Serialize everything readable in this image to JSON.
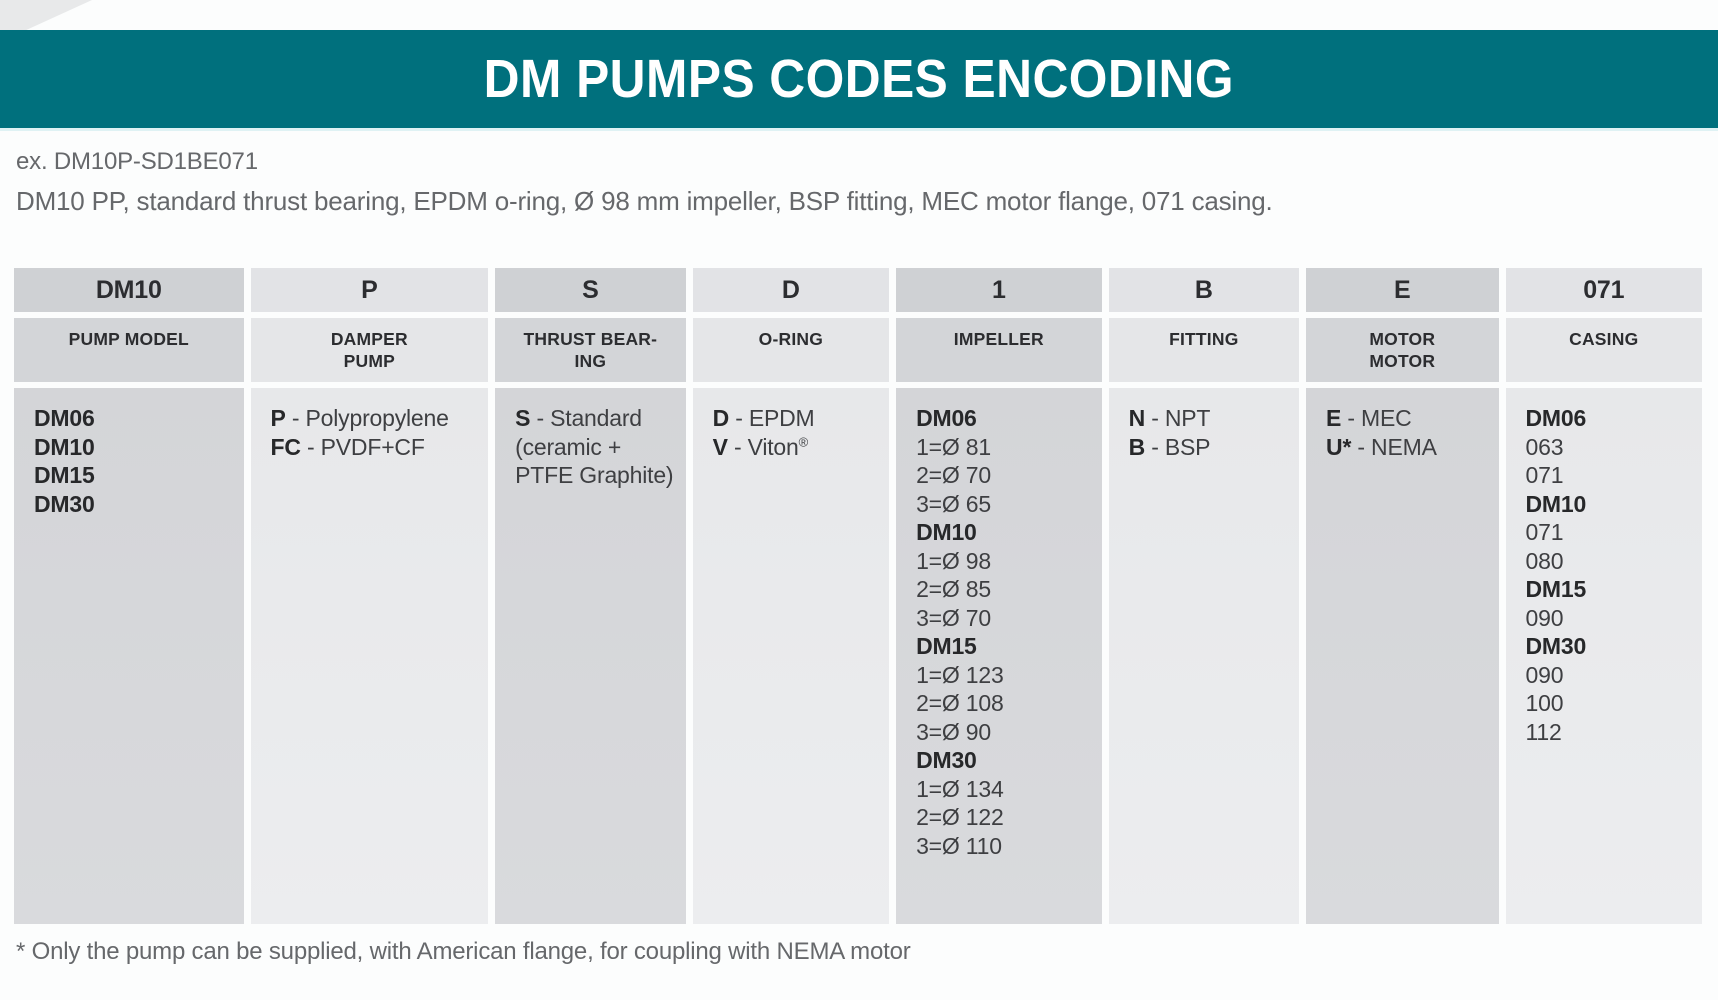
{
  "banner": {
    "title": "DM PUMPS CODES ENCODING"
  },
  "example": {
    "line1": "ex. DM10P-SD1BE071",
    "line2": "DM10 PP, standard thrust bearing, EPDM o-ring, Ø 98 mm impeller, BSP fitting, MEC motor flange, 071 casing."
  },
  "table": {
    "columns": [
      {
        "code": "DM10",
        "label": [
          "PUMP MODEL"
        ],
        "shade": "dark",
        "lines": [
          {
            "b": "DM06",
            "r": ""
          },
          {
            "b": "DM10",
            "r": ""
          },
          {
            "b": "DM15",
            "r": ""
          },
          {
            "b": "DM30",
            "r": ""
          }
        ]
      },
      {
        "code": "P",
        "label": [
          "DAMPER",
          "PUMP"
        ],
        "shade": "light",
        "lines": [
          {
            "b": "P",
            "r": " - Polypropylene"
          },
          {
            "b": "FC",
            "r": " - PVDF+CF"
          }
        ]
      },
      {
        "code": "S",
        "label": [
          "THRUST BEAR-",
          "ING"
        ],
        "shade": "dark",
        "lines": [
          {
            "b": "S",
            "r": " - Standard"
          },
          {
            "b": "",
            "r": "(ceramic +"
          },
          {
            "b": "",
            "r": "PTFE Graphite)"
          }
        ]
      },
      {
        "code": "D",
        "label": [
          "O-RING"
        ],
        "shade": "light",
        "lines": [
          {
            "b": "D",
            "r": " - EPDM"
          },
          {
            "b": "V",
            "r": " - Viton",
            "sup": "®"
          }
        ]
      },
      {
        "code": "1",
        "label": [
          "IMPELLER"
        ],
        "shade": "dark",
        "lines": [
          {
            "b": "DM06",
            "r": ""
          },
          {
            "b": "",
            "r": "1=Ø 81"
          },
          {
            "b": "",
            "r": "2=Ø 70"
          },
          {
            "b": "",
            "r": "3=Ø 65"
          },
          {
            "b": "DM10",
            "r": ""
          },
          {
            "b": "",
            "r": "1=Ø 98"
          },
          {
            "b": "",
            "r": "2=Ø 85"
          },
          {
            "b": "",
            "r": "3=Ø 70"
          },
          {
            "b": "DM15",
            "r": ""
          },
          {
            "b": "",
            "r": "1=Ø 123"
          },
          {
            "b": "",
            "r": "2=Ø 108"
          },
          {
            "b": "",
            "r": "3=Ø 90"
          },
          {
            "b": "DM30",
            "r": ""
          },
          {
            "b": "",
            "r": "1=Ø 134"
          },
          {
            "b": "",
            "r": "2=Ø 122"
          },
          {
            "b": "",
            "r": "3=Ø 110"
          }
        ]
      },
      {
        "code": "B",
        "label": [
          "FITTING"
        ],
        "shade": "light",
        "lines": [
          {
            "b": "N",
            "r": " - NPT"
          },
          {
            "b": "B",
            "r": " - BSP"
          }
        ]
      },
      {
        "code": "E",
        "label": [
          "MOTOR",
          "MOTOR"
        ],
        "shade": "dark",
        "lines": [
          {
            "b": "E",
            "r": " - MEC"
          },
          {
            "b": "U*",
            "r": " - NEMA"
          }
        ]
      },
      {
        "code": "071",
        "label": [
          "CASING"
        ],
        "shade": "light",
        "lines": [
          {
            "b": "DM06",
            "r": ""
          },
          {
            "b": "",
            "r": "063"
          },
          {
            "b": "",
            "r": "071"
          },
          {
            "b": "DM10",
            "r": ""
          },
          {
            "b": "",
            "r": "071"
          },
          {
            "b": "",
            "r": "080"
          },
          {
            "b": "DM15",
            "r": ""
          },
          {
            "b": "",
            "r": "090"
          },
          {
            "b": "DM30",
            "r": ""
          },
          {
            "b": "",
            "r": "090"
          },
          {
            "b": "",
            "r": "100"
          },
          {
            "b": "",
            "r": "112"
          }
        ]
      }
    ]
  },
  "footnote": "* Only the pump can be supplied, with American flange, for coupling with NEMA motor",
  "colors": {
    "banner_bg": "#00707d",
    "banner_text": "#ffffff",
    "cell_dark": "#d4d5d8",
    "cell_light": "#e9eaec",
    "table_text": "#3e3f42",
    "muted_text": "#66686b"
  }
}
